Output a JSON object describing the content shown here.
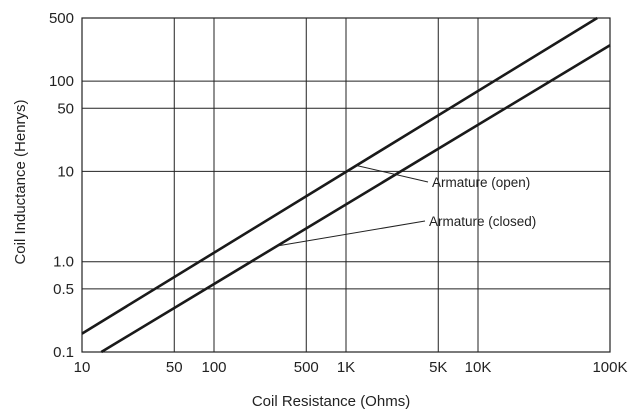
{
  "chart_data": {
    "type": "line",
    "xlabel": "Coil Resistance (Ohms)",
    "ylabel": "Coil Inductance (Henrys)",
    "xscale": "log",
    "yscale": "log",
    "xlim": [
      10,
      100000
    ],
    "ylim": [
      0.1,
      500
    ],
    "grid": true,
    "x_ticks": [
      {
        "value": 10,
        "label": "10"
      },
      {
        "value": 50,
        "label": "50"
      },
      {
        "value": 100,
        "label": "100"
      },
      {
        "value": 500,
        "label": "500"
      },
      {
        "value": 1000,
        "label": "1K"
      },
      {
        "value": 5000,
        "label": "5K"
      },
      {
        "value": 10000,
        "label": "10K"
      },
      {
        "value": 100000,
        "label": "100K"
      }
    ],
    "y_ticks": [
      {
        "value": 0.1,
        "label": "0.1"
      },
      {
        "value": 0.5,
        "label": "0.5"
      },
      {
        "value": 1,
        "label": "1.0"
      },
      {
        "value": 10,
        "label": "10"
      },
      {
        "value": 50,
        "label": "50"
      },
      {
        "value": 100,
        "label": "100"
      },
      {
        "value": 500,
        "label": "500"
      }
    ],
    "series": [
      {
        "name": "Armature (open)",
        "x": [
          10,
          80000
        ],
        "y": [
          0.16,
          500
        ]
      },
      {
        "name": "Armature (closed)",
        "x": [
          14,
          100000
        ],
        "y": [
          0.1,
          250
        ]
      }
    ],
    "annotations": [
      {
        "text": "Armature (open)",
        "series": 0,
        "at_x": 1200
      },
      {
        "text": "Armature (closed)",
        "series": 1,
        "at_x": 300
      }
    ]
  }
}
